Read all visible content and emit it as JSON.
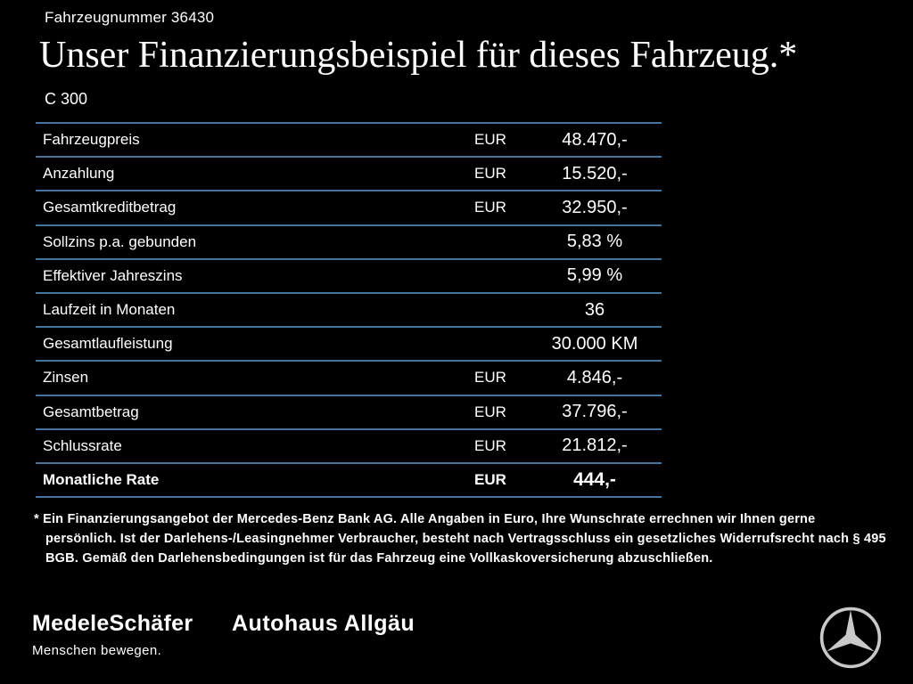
{
  "header": {
    "vehicle_number": "Fahrzeugnummer 36430",
    "title": "Unser Finanzierungsbeispiel für dieses Fahrzeug.*",
    "model": "C 300"
  },
  "table": {
    "rows": [
      {
        "label": "Fahrzeugpreis",
        "currency": "EUR",
        "value": "48.470,-",
        "bold": false
      },
      {
        "label": "Anzahlung",
        "currency": "EUR",
        "value": "15.520,-",
        "bold": false
      },
      {
        "label": "Gesamtkreditbetrag",
        "currency": "EUR",
        "value": "32.950,-",
        "bold": false
      },
      {
        "label": "Sollzins p.a. gebunden",
        "currency": "",
        "value": "5,83 %",
        "bold": false
      },
      {
        "label": "Effektiver Jahreszins",
        "currency": "",
        "value": "5,99 %",
        "bold": false
      },
      {
        "label": "Laufzeit in Monaten",
        "currency": "",
        "value": "36",
        "bold": false
      },
      {
        "label": "Gesamtlaufleistung",
        "currency": "",
        "value": "30.000 KM",
        "bold": false
      },
      {
        "label": "Zinsen",
        "currency": "EUR",
        "value": "4.846,-",
        "bold": false
      },
      {
        "label": "Gesamtbetrag",
        "currency": "EUR",
        "value": "37.796,-",
        "bold": false
      },
      {
        "label": "Schlussrate",
        "currency": "EUR",
        "value": "21.812,-",
        "bold": false
      },
      {
        "label": "Monatliche Rate",
        "currency": "EUR",
        "value": "444,-",
        "bold": true
      }
    ]
  },
  "footnote": "* Ein Finanzierungsangebot der Mercedes-Benz Bank AG. Alle Angaben in Euro, Ihre Wunschrate errechnen wir Ihnen gerne persönlich. Ist der Darlehens-/Leasingnehmer Verbraucher, besteht nach Vertragsschluss ein gesetzliches Widerrufsrecht nach § 495 BGB. Gemäß den Darlehensbedingungen ist für das Fahrzeug eine Vollkaskoversicherung abzuschließen.",
  "footer": {
    "dealer1_name": "MedeleSchäfer",
    "dealer1_tagline": "Menschen bewegen.",
    "dealer2_name": "Autohaus Allgäu"
  },
  "colors": {
    "background": "#000000",
    "text": "#ffffff",
    "divider": "#44749c",
    "logo_silver": "#c9c9c9"
  }
}
